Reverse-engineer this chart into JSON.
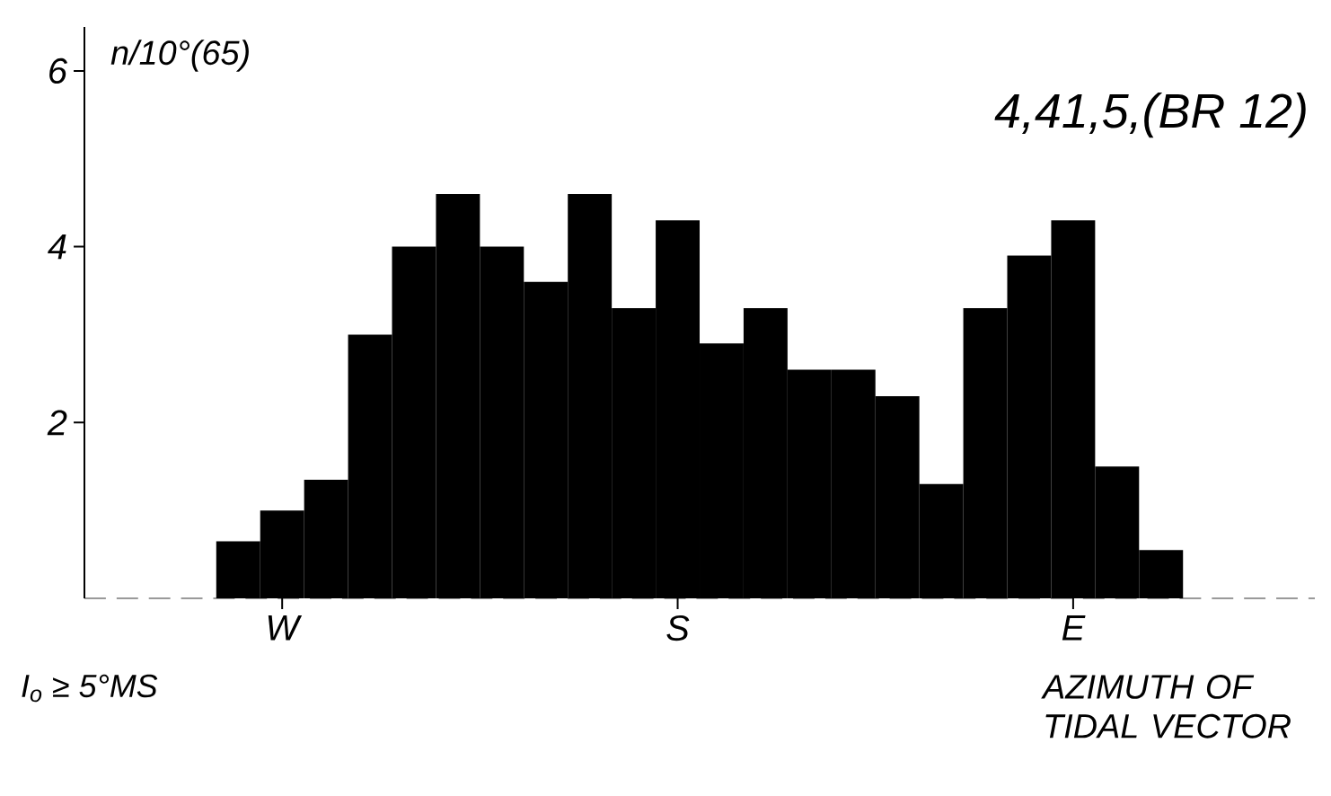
{
  "chart_data": {
    "type": "bar",
    "title": "4,41,5,(BR 12)",
    "ylabel": "n/10°(65)",
    "xlabel": "AZIMUTH OF TIDAL VECTOR",
    "annotations": [
      "I$_{o}$ ≥ 5°MS"
    ],
    "categories": [
      null,
      null,
      null,
      null,
      "W",
      null,
      null,
      null,
      null,
      null,
      null,
      null,
      null,
      "S",
      null,
      null,
      null,
      null,
      null,
      null,
      null,
      null,
      "E",
      null,
      null,
      null,
      null,
      null
    ],
    "values": [
      0,
      0,
      0,
      0.65,
      1.0,
      1.35,
      3.0,
      4.0,
      4.6,
      4.0,
      3.6,
      4.6,
      3.3,
      4.3,
      2.9,
      3.3,
      2.6,
      2.6,
      2.3,
      1.3,
      3.3,
      3.9,
      4.3,
      1.5,
      0.55,
      0,
      0,
      0
    ],
    "color": "#000000",
    "ylim": [
      0,
      6.5
    ],
    "yticks": [
      2,
      4,
      6
    ]
  }
}
